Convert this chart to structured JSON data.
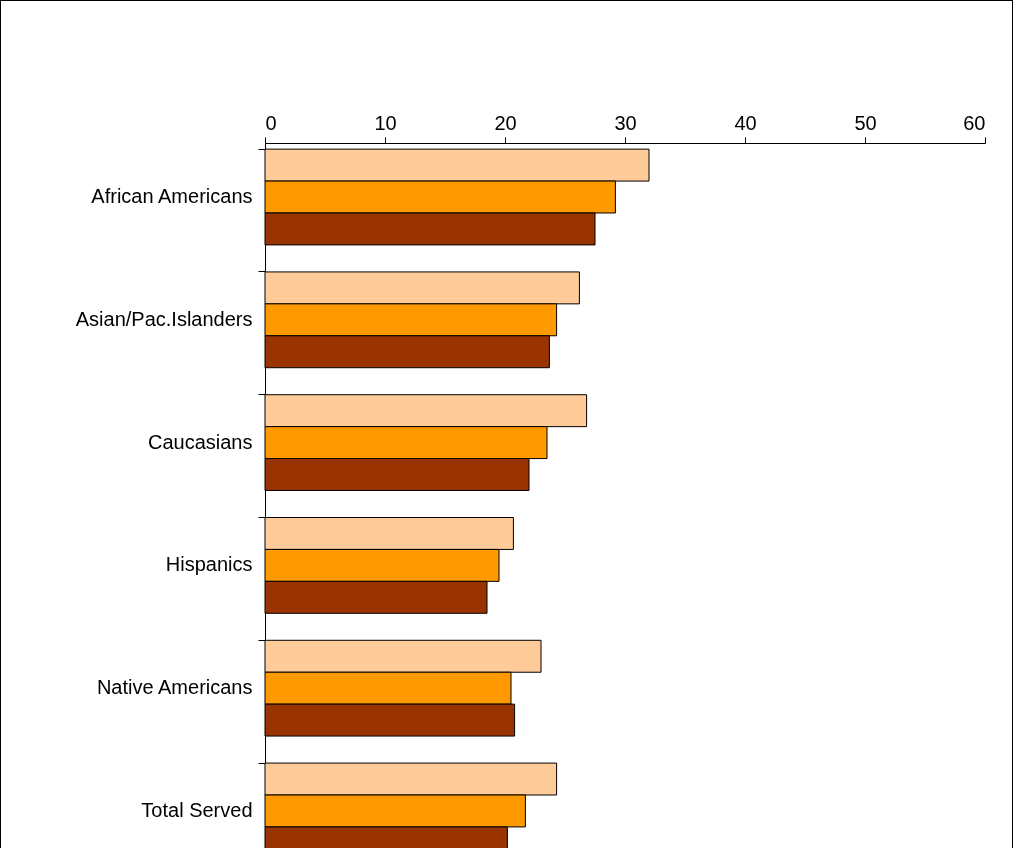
{
  "chart_data": {
    "type": "bar",
    "orientation": "horizontal",
    "categories": [
      "African Americans",
      "Asian/Pac.Islanders",
      "Caucasians",
      "Hispanics",
      "Native Americans",
      "Total Served"
    ],
    "series": [
      {
        "color": "#ffcc99",
        "values": [
          32.0,
          26.2,
          26.8,
          20.7,
          23.0,
          24.3
        ]
      },
      {
        "color": "#ff9900",
        "values": [
          29.2,
          24.3,
          23.5,
          19.5,
          20.5,
          21.7
        ]
      },
      {
        "color": "#993300",
        "values": [
          27.5,
          23.7,
          22.0,
          18.5,
          20.8,
          20.2
        ]
      }
    ],
    "xlim": [
      0,
      60
    ],
    "xticks": [
      0,
      10,
      20,
      30,
      40,
      50,
      60
    ],
    "grid": false,
    "legend": false
  }
}
